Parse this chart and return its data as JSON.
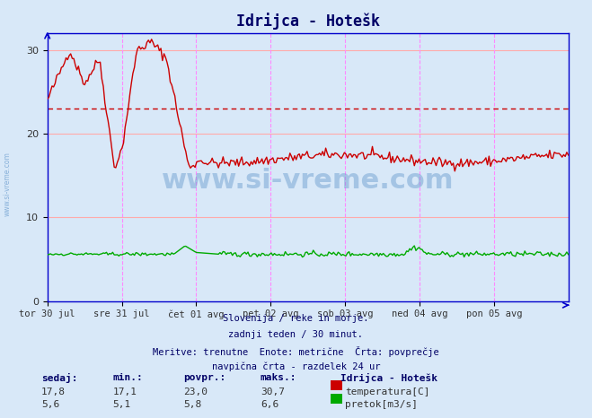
{
  "title": "Idrijca - Hotešk",
  "background_color": "#d8e8f8",
  "plot_bg_color": "#d8e8f8",
  "x_labels": [
    "tor 30 jul",
    "sre 31 jul",
    "čet 01 avg",
    "pet 02 avg",
    "sob 03 avg",
    "ned 04 avg",
    "pon 05 avg"
  ],
  "y_ticks": [
    0,
    10,
    20,
    30
  ],
  "y_min": 0,
  "y_max": 32,
  "temp_color": "#cc0000",
  "flow_color": "#00aa00",
  "avg_line_color": "#cc0000",
  "hgrid_color": "#ffaaaa",
  "vgrid_color": "#ff88ff",
  "axis_color": "#0000cc",
  "temp_avg": 23.0,
  "flow_avg": 5.8,
  "subtitle_lines": [
    "Slovenija / reke in morje.",
    "zadnji teden / 30 minut.",
    "Meritve: trenutne  Enote: metrične  Črta: povprečje",
    "navpična črta - razdelek 24 ur"
  ],
  "footer_headers": [
    "sedaj:",
    "min.:",
    "povpr.:",
    "maks.:"
  ],
  "footer_temp": [
    "17,8",
    "17,1",
    "23,0",
    "30,7"
  ],
  "footer_flow": [
    "5,6",
    "5,1",
    "5,8",
    "6,6"
  ],
  "legend_title": "Idrijca - Hotešk",
  "legend_items": [
    "temperatura[C]",
    "pretok[m3/s]"
  ]
}
